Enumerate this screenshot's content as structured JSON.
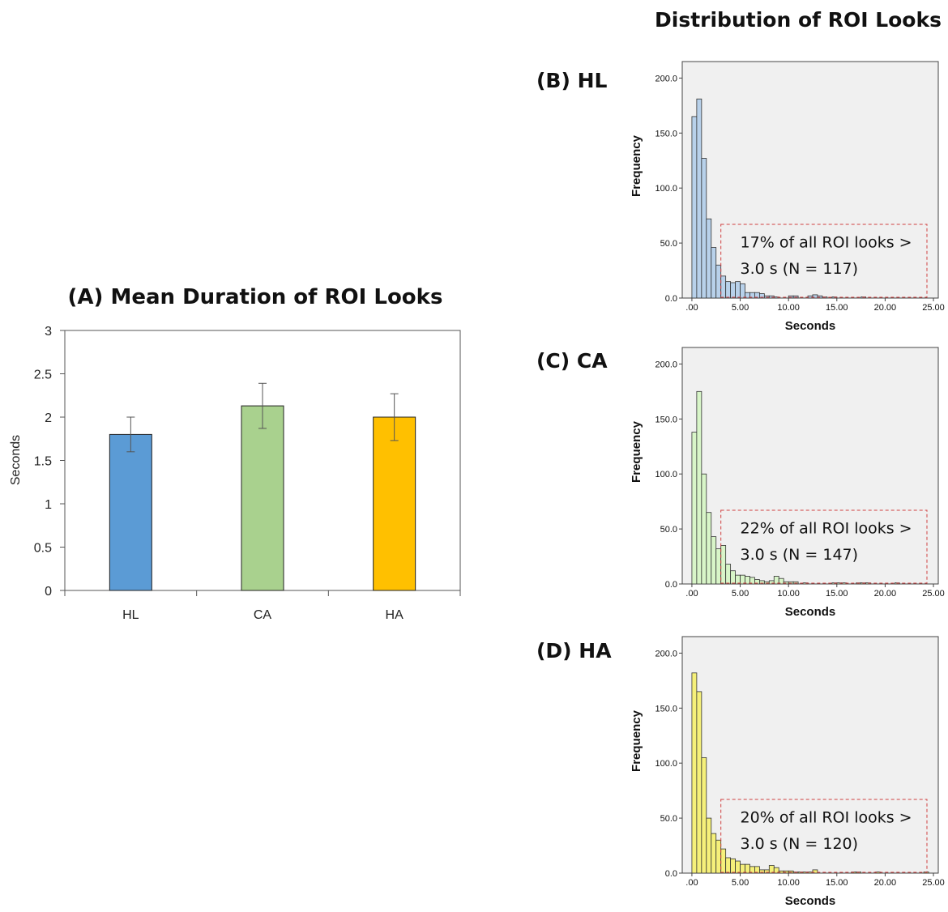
{
  "figure": {
    "right_title": "Distribution of ROI Looks"
  },
  "chart_data": [
    {
      "type": "bar",
      "title": "(A) Mean Duration of ROI Looks",
      "ylabel": "Seconds",
      "xlabel": "",
      "categories": [
        "HL",
        "CA",
        "HA"
      ],
      "values": [
        1.8,
        2.13,
        2.0
      ],
      "error": [
        0.2,
        0.26,
        0.27
      ],
      "colors": [
        "#5b9bd5",
        "#a9d18e",
        "#ffc000"
      ],
      "ylim": [
        0,
        3
      ],
      "yticks": [
        "0",
        "0.5",
        "1",
        "1.5",
        "2",
        "2.5",
        "3"
      ],
      "grid": false
    },
    {
      "type": "bar",
      "panel_label": "(B) HL",
      "xlabel": "Seconds",
      "ylabel": "Frequency",
      "bin_width": 0.5,
      "bin_start": 0,
      "values": [
        165,
        181,
        127,
        72,
        46,
        30,
        20,
        15,
        14,
        15,
        13,
        5,
        5,
        5,
        4,
        2,
        2,
        1,
        0,
        0,
        2,
        2,
        0,
        0,
        2,
        3,
        2,
        1,
        0,
        1,
        0,
        0,
        0,
        0,
        0,
        1,
        0,
        0,
        0,
        0,
        0,
        0,
        0,
        0,
        0,
        0,
        0,
        0,
        0,
        0
      ],
      "xticks": [
        ".00",
        "5.00",
        "10.00",
        "15.00",
        "20.00",
        "25.00"
      ],
      "yticks": [
        "0.0",
        "50.0",
        "100.0",
        "150.0",
        "200.0"
      ],
      "xlim": [
        -1,
        25.5
      ],
      "ylim": [
        0,
        215
      ],
      "bar_color": "#b8d1ea",
      "background": "#f0f0f0",
      "annotation": [
        "17% of all ROI looks >",
        "3.0 s (N = 117)"
      ],
      "grid": false
    },
    {
      "type": "bar",
      "panel_label": "(C) CA",
      "xlabel": "Seconds",
      "ylabel": "Frequency",
      "bin_width": 0.5,
      "bin_start": 0,
      "values": [
        138,
        175,
        100,
        65,
        43,
        32,
        35,
        18,
        12,
        8,
        8,
        7,
        6,
        4,
        3,
        2,
        3,
        7,
        5,
        2,
        2,
        2,
        0,
        1,
        0,
        0,
        0,
        0,
        0,
        1,
        1,
        1,
        0,
        0,
        1,
        1,
        1,
        0,
        0,
        0,
        0,
        0,
        1,
        0,
        0,
        0,
        0,
        0,
        0,
        0
      ],
      "xticks": [
        ".00",
        "5.00",
        "10.00",
        "15.00",
        "20.00",
        "25.00"
      ],
      "yticks": [
        "0.0",
        "50.0",
        "100.0",
        "150.0",
        "200.0"
      ],
      "xlim": [
        -1,
        25.5
      ],
      "ylim": [
        0,
        215
      ],
      "bar_color": "#d8f5c8",
      "background": "#f0f0f0",
      "annotation": [
        "22% of all ROI looks >",
        "3.0 s (N = 147)"
      ],
      "grid": false
    },
    {
      "type": "bar",
      "panel_label": "(D) HA",
      "xlabel": "Seconds",
      "ylabel": "Frequency",
      "bin_width": 0.5,
      "bin_start": 0,
      "values": [
        182,
        165,
        105,
        50,
        36,
        30,
        22,
        14,
        13,
        11,
        8,
        8,
        6,
        6,
        3,
        3,
        7,
        5,
        2,
        2,
        2,
        1,
        1,
        1,
        1,
        3,
        0,
        0,
        0,
        0,
        0,
        0,
        0,
        1,
        1,
        0,
        0,
        0,
        1,
        0,
        0,
        0,
        0,
        0,
        0,
        0,
        0,
        0,
        1,
        0
      ],
      "xticks": [
        ".00",
        "5.00",
        "10.00",
        "15.00",
        "20.00",
        "25.00"
      ],
      "yticks": [
        "0.0",
        "50.0",
        "100.0",
        "150.0",
        "200.0"
      ],
      "xlim": [
        -1,
        25.5
      ],
      "ylim": [
        0,
        215
      ],
      "bar_color": "#f5f07a",
      "background": "#f0f0f0",
      "annotation": [
        "20% of all ROI looks >",
        "3.0 s (N = 120)"
      ],
      "grid": false
    }
  ]
}
